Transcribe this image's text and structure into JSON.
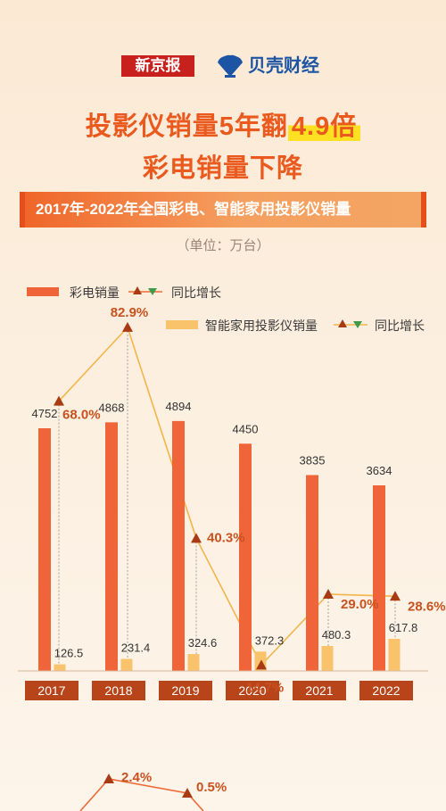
{
  "header": {
    "logo_left": "新京报",
    "logo_right": "贝壳财经",
    "title_line1_prefix": "投影仪销量5年翻",
    "title_line1_highlight": "4.9倍",
    "title_line2": "彩电销量下降",
    "banner": "2017年-2022年全国彩电、智能家用投影仪销量",
    "unit": "（单位：万台）"
  },
  "legend": {
    "tv": "彩电销量",
    "tv_growth": "同比增长",
    "projector": "智能家用投影仪销量",
    "projector_growth": "同比增长"
  },
  "colors": {
    "tv": "#f0643a",
    "projector": "#f9c36c",
    "projector_line": "#f2b54a",
    "tv_line": "#ee6a38",
    "growth_label": "#c8521f",
    "year_box": "#b8441a"
  },
  "chart_data": {
    "type": "bar",
    "categories": [
      "2017",
      "2018",
      "2019",
      "2020",
      "2021",
      "2022"
    ],
    "series": [
      {
        "name": "彩电销量",
        "values": [
          4752,
          4868,
          4894,
          4450,
          3835,
          3634
        ]
      },
      {
        "name": "智能家用投影仪销量",
        "values": [
          126.5,
          231.4,
          324.6,
          372.3,
          480.3,
          617.8
        ]
      }
    ],
    "projector_growth": {
      "name": "同比增长",
      "values": [
        68.0,
        82.9,
        40.3,
        14.7,
        29.0,
        28.6
      ],
      "labels": [
        "68.0%",
        "82.9%",
        "40.3%",
        "14.7%",
        "29.0%",
        "28.6%"
      ]
    },
    "tv_growth_partial": {
      "name": "同比增长",
      "labels": [
        "2.4%",
        "0.5%"
      ]
    },
    "tv_value_labels": [
      "4752",
      "4868",
      "4894",
      "4450",
      "3835",
      "3634"
    ],
    "projector_value_labels": [
      "126.5",
      "231.4",
      "324.6",
      "372.3",
      "480.3",
      "617.8"
    ]
  }
}
